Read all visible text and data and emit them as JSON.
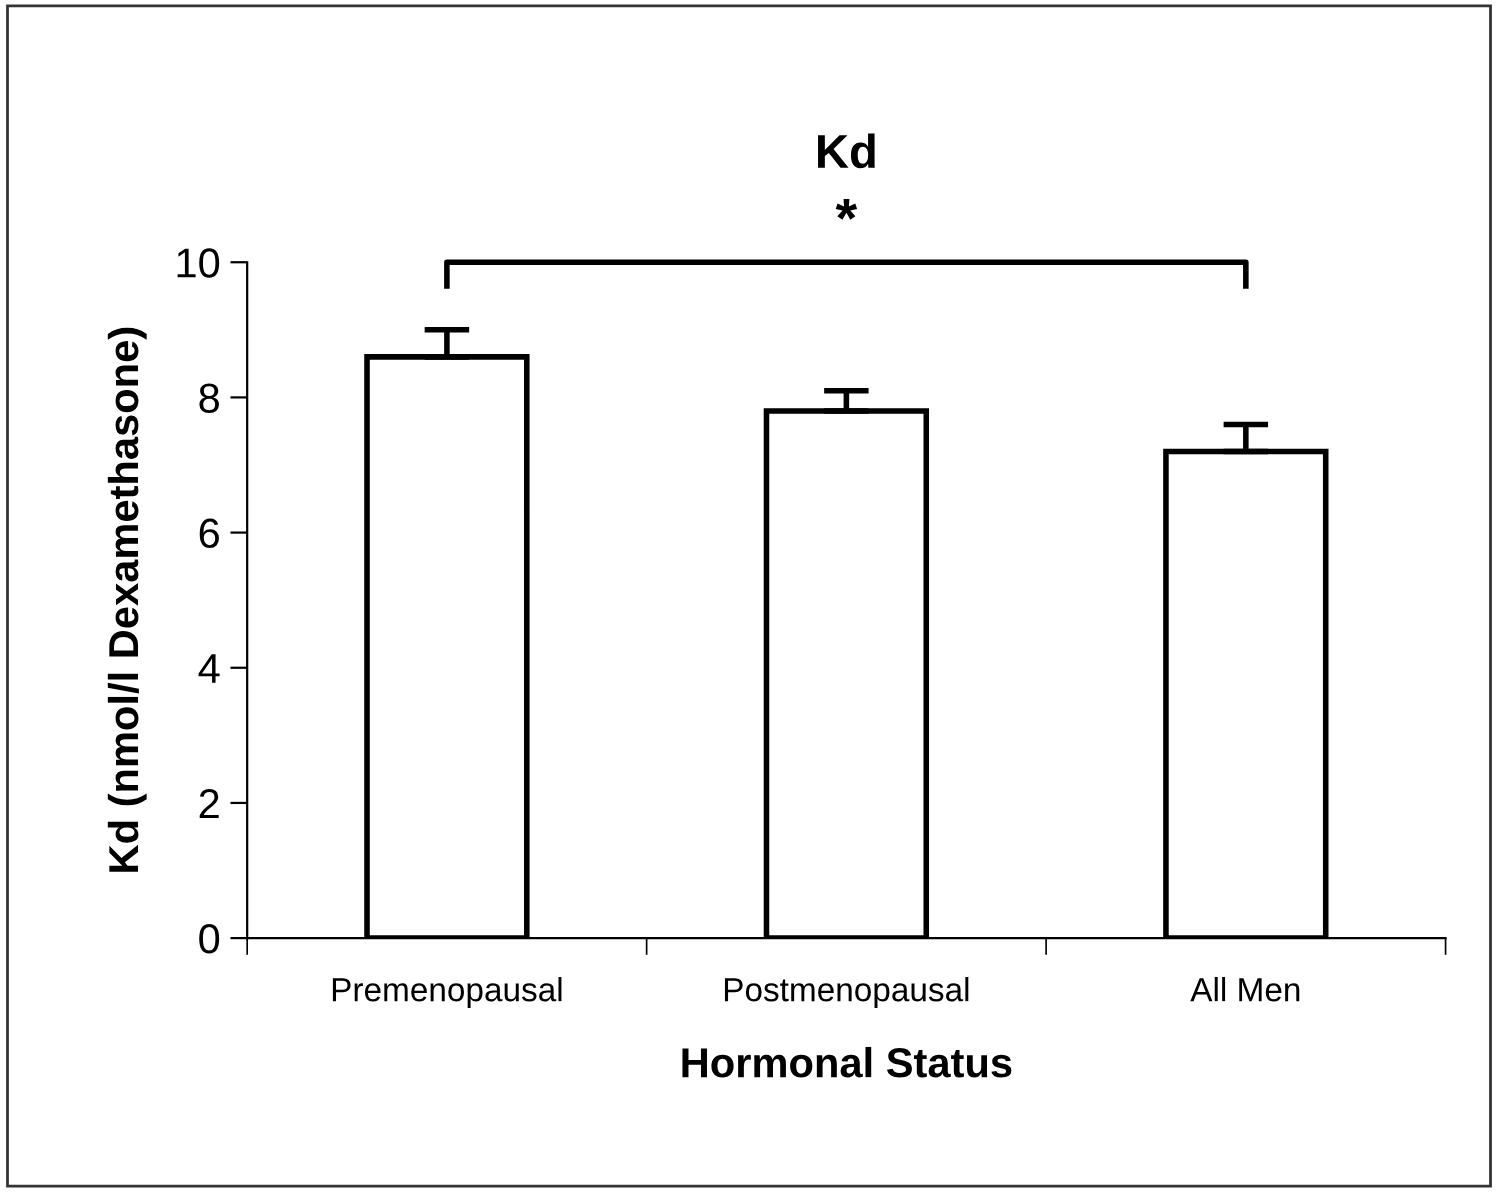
{
  "chart_data": {
    "type": "bar",
    "title": "Kd",
    "xlabel": "Hormonal Status",
    "ylabel": "Kd (nmol/l Dexamethasone)",
    "categories": [
      "Premenopausal",
      "Postmenopausal",
      "All Men"
    ],
    "values": [
      8.6,
      7.8,
      7.2
    ],
    "errors": [
      0.4,
      0.3,
      0.4
    ],
    "color": "#ffffff",
    "ylim": [
      0,
      10
    ],
    "yticks": [
      0,
      2,
      4,
      6,
      8,
      10
    ],
    "grid": false,
    "legend": false,
    "annotations": [
      "*"
    ]
  }
}
